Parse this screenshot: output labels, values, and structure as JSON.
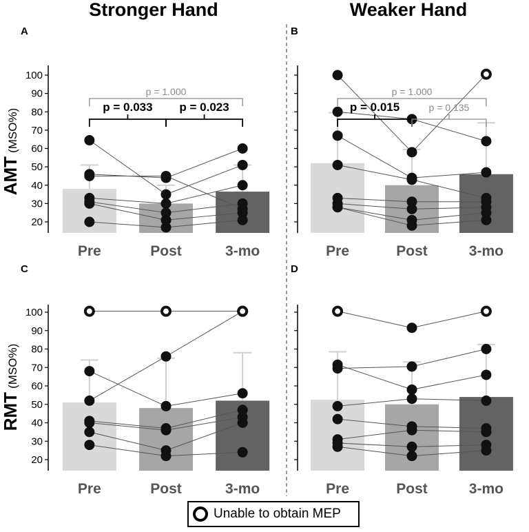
{
  "figure": {
    "col_titles": [
      "Stronger Hand",
      "Weaker Hand"
    ],
    "legend": {
      "open_marker_label": "Unable to obtain MEP"
    },
    "colors": {
      "bar_pre": "#d9d9d9",
      "bar_post": "#a6a6a6",
      "bar_3mo": "#636363",
      "point": "#111111",
      "line": "#555555",
      "err": "#d0d0d0",
      "sig": "#000000",
      "nonsig": "#8a8a8a",
      "divider": "#9a9a9a"
    }
  },
  "chart_data": [
    {
      "panel": "A",
      "type": "bar",
      "title": "Stronger Hand",
      "ylabel_main": "AMT",
      "ylabel_unit": "(MSO%)",
      "categories": [
        "Pre",
        "Post",
        "3-mo"
      ],
      "ylim": [
        14,
        104
      ],
      "yticks": [
        "20",
        "30",
        "40",
        "50",
        "60",
        "70",
        "80",
        "90",
        "100"
      ],
      "means": [
        38,
        30,
        36.5
      ],
      "err_upper": [
        51,
        40,
        51
      ],
      "subjects": [
        {
          "values": [
            64.5,
            35,
            51
          ],
          "open": [
            false,
            false,
            false
          ]
        },
        {
          "values": [
            46,
            44,
            60
          ],
          "open": [
            false,
            false,
            false
          ]
        },
        {
          "values": [
            45,
            45,
            27
          ],
          "open": [
            false,
            false,
            false
          ]
        },
        {
          "values": [
            33,
            30,
            40
          ],
          "open": [
            false,
            false,
            false
          ]
        },
        {
          "values": [
            31,
            25,
            30
          ],
          "open": [
            false,
            false,
            false
          ]
        },
        {
          "values": [
            30,
            21,
            25
          ],
          "open": [
            false,
            false,
            false
          ]
        },
        {
          "values": [
            20,
            17,
            21
          ],
          "open": [
            false,
            false,
            false
          ]
        }
      ],
      "comparisons": [
        {
          "from": 0,
          "to": 2,
          "label": "p = 1.000",
          "bold": false,
          "level": 2
        },
        {
          "from": 0,
          "to": 1,
          "label": "p = 0.033",
          "bold": true,
          "level": 1
        },
        {
          "from": 1,
          "to": 2,
          "label": "p = 0.023",
          "bold": true,
          "level": 1
        }
      ]
    },
    {
      "panel": "B",
      "type": "bar",
      "title": "Weaker Hand",
      "categories": [
        "Pre",
        "Post",
        "3-mo"
      ],
      "ylim": [
        14,
        104
      ],
      "means": [
        52,
        40,
        46
      ],
      "err_upper": [
        79.5,
        59.5,
        74
      ],
      "subjects": [
        {
          "values": [
            100,
            58,
            100.5
          ],
          "open": [
            false,
            false,
            true
          ]
        },
        {
          "values": [
            80,
            76,
            64
          ],
          "open": [
            false,
            false,
            false
          ]
        },
        {
          "values": [
            67,
            44,
            47
          ],
          "open": [
            false,
            false,
            false
          ]
        },
        {
          "values": [
            51,
            43,
            33
          ],
          "open": [
            false,
            false,
            false
          ]
        },
        {
          "values": [
            33,
            31,
            31
          ],
          "open": [
            false,
            false,
            false
          ]
        },
        {
          "values": [
            30,
            27,
            28
          ],
          "open": [
            false,
            false,
            false
          ]
        },
        {
          "values": [
            28,
            21,
            25
          ],
          "open": [
            false,
            false,
            false
          ]
        },
        {
          "values": [
            28,
            18,
            21
          ],
          "open": [
            false,
            false,
            false
          ]
        }
      ],
      "comparisons": [
        {
          "from": 0,
          "to": 2,
          "label": "p = 1.000",
          "bold": false,
          "level": 2
        },
        {
          "from": 0,
          "to": 1,
          "label": "p = 0.015",
          "bold": true,
          "level": 1
        },
        {
          "from": 1,
          "to": 2,
          "label": "p = 0.135",
          "bold": false,
          "level": 1
        }
      ]
    },
    {
      "panel": "C",
      "type": "bar",
      "ylabel_main": "RMT",
      "ylabel_unit": "(MSO%)",
      "categories": [
        "Pre",
        "Post",
        "3-mo"
      ],
      "ylim": [
        17,
        104
      ],
      "yticks": [
        "20",
        "30",
        "40",
        "50",
        "60",
        "70",
        "80",
        "90",
        "100"
      ],
      "means": [
        51,
        48,
        52
      ],
      "err_upper": [
        74,
        75,
        78
      ],
      "subjects": [
        {
          "values": [
            100.5,
            100.5,
            100.5
          ],
          "open": [
            true,
            true,
            true
          ]
        },
        {
          "values": [
            68,
            49,
            56
          ],
          "open": [
            false,
            false,
            false
          ]
        },
        {
          "values": [
            52,
            76,
            100.5
          ],
          "open": [
            false,
            false,
            true
          ]
        },
        {
          "values": [
            41,
            37,
            47
          ],
          "open": [
            false,
            false,
            false
          ]
        },
        {
          "values": [
            40,
            36,
            43
          ],
          "open": [
            false,
            false,
            false
          ]
        },
        {
          "values": [
            35,
            25,
            40
          ],
          "open": [
            false,
            false,
            false
          ]
        },
        {
          "values": [
            28,
            22,
            24
          ],
          "open": [
            false,
            false,
            false
          ]
        }
      ],
      "comparisons": []
    },
    {
      "panel": "D",
      "type": "bar",
      "categories": [
        "Pre",
        "Post",
        "3-mo"
      ],
      "ylim": [
        17,
        104
      ],
      "means": [
        52.5,
        50,
        54
      ],
      "err_upper": [
        78.5,
        73,
        82.5
      ],
      "subjects": [
        {
          "values": [
            100.5,
            91.5,
            100.5
          ],
          "open": [
            true,
            false,
            true
          ]
        },
        {
          "values": [
            71.5,
            58,
            66
          ],
          "open": [
            false,
            false,
            false
          ]
        },
        {
          "values": [
            69.5,
            70.5,
            80
          ],
          "open": [
            false,
            false,
            false
          ]
        },
        {
          "values": [
            49,
            53,
            52
          ],
          "open": [
            false,
            false,
            false
          ]
        },
        {
          "values": [
            42,
            38,
            37
          ],
          "open": [
            false,
            false,
            false
          ]
        },
        {
          "values": [
            31,
            36,
            35
          ],
          "open": [
            false,
            false,
            false
          ]
        },
        {
          "values": [
            29,
            27,
            28
          ],
          "open": [
            false,
            false,
            false
          ]
        },
        {
          "values": [
            27,
            22,
            25
          ],
          "open": [
            false,
            false,
            false
          ]
        }
      ],
      "comparisons": []
    }
  ]
}
